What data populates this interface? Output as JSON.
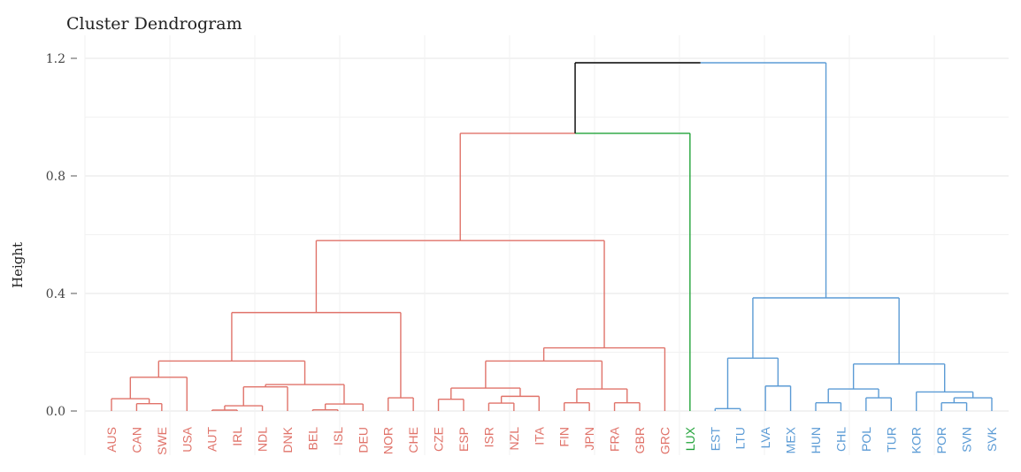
{
  "chart_data": {
    "type": "dendrogram",
    "title": "Cluster Dendrogram",
    "ylabel": "Height",
    "xlabel": "",
    "ylim": [
      0,
      1.2
    ],
    "yticks": [
      "0.0",
      "0.4",
      "0.8",
      "1.2"
    ],
    "ytick_values": [
      0,
      0.4,
      0.8,
      1.2
    ],
    "grid": true,
    "colors": {
      "cluster1": "#e0736a",
      "cluster2": "#22a33a",
      "cluster3": "#5b9bd5",
      "root": "#000000"
    },
    "leaves": [
      {
        "label": "AUS",
        "cluster": "cluster1"
      },
      {
        "label": "CAN",
        "cluster": "cluster1"
      },
      {
        "label": "SWE",
        "cluster": "cluster1"
      },
      {
        "label": "USA",
        "cluster": "cluster1"
      },
      {
        "label": "AUT",
        "cluster": "cluster1"
      },
      {
        "label": "IRL",
        "cluster": "cluster1"
      },
      {
        "label": "NDL",
        "cluster": "cluster1"
      },
      {
        "label": "DNK",
        "cluster": "cluster1"
      },
      {
        "label": "BEL",
        "cluster": "cluster1"
      },
      {
        "label": "ISL",
        "cluster": "cluster1"
      },
      {
        "label": "DEU",
        "cluster": "cluster1"
      },
      {
        "label": "NOR",
        "cluster": "cluster1"
      },
      {
        "label": "CHE",
        "cluster": "cluster1"
      },
      {
        "label": "CZE",
        "cluster": "cluster1"
      },
      {
        "label": "ESP",
        "cluster": "cluster1"
      },
      {
        "label": "ISR",
        "cluster": "cluster1"
      },
      {
        "label": "NZL",
        "cluster": "cluster1"
      },
      {
        "label": "ITA",
        "cluster": "cluster1"
      },
      {
        "label": "FIN",
        "cluster": "cluster1"
      },
      {
        "label": "JPN",
        "cluster": "cluster1"
      },
      {
        "label": "FRA",
        "cluster": "cluster1"
      },
      {
        "label": "GBR",
        "cluster": "cluster1"
      },
      {
        "label": "GRC",
        "cluster": "cluster1"
      },
      {
        "label": "LUX",
        "cluster": "cluster2"
      },
      {
        "label": "EST",
        "cluster": "cluster3"
      },
      {
        "label": "LTU",
        "cluster": "cluster3"
      },
      {
        "label": "LVA",
        "cluster": "cluster3"
      },
      {
        "label": "MEX",
        "cluster": "cluster3"
      },
      {
        "label": "HUN",
        "cluster": "cluster3"
      },
      {
        "label": "CHL",
        "cluster": "cluster3"
      },
      {
        "label": "POL",
        "cluster": "cluster3"
      },
      {
        "label": "TUR",
        "cluster": "cluster3"
      },
      {
        "label": "KOR",
        "cluster": "cluster3"
      },
      {
        "label": "POR",
        "cluster": "cluster3"
      },
      {
        "label": "SVN",
        "cluster": "cluster3"
      },
      {
        "label": "SVK",
        "cluster": "cluster3"
      }
    ],
    "merges": [
      {
        "a": [
          4
        ],
        "b": [
          5
        ],
        "height": 0.003,
        "color": "cluster1"
      },
      {
        "a": [
          8
        ],
        "b": [
          9
        ],
        "height": 0.004,
        "color": "cluster1"
      },
      {
        "a": [
          24
        ],
        "b": [
          25
        ],
        "height": 0.008,
        "color": "cluster3"
      },
      {
        "a": [
          4,
          5
        ],
        "b": [
          6
        ],
        "height": 0.018,
        "color": "cluster1"
      },
      {
        "a": [
          8,
          9
        ],
        "b": [
          10
        ],
        "height": 0.024,
        "color": "cluster1"
      },
      {
        "a": [
          1
        ],
        "b": [
          2
        ],
        "height": 0.025,
        "color": "cluster1"
      },
      {
        "a": [
          15
        ],
        "b": [
          16
        ],
        "height": 0.027,
        "color": "cluster1"
      },
      {
        "a": [
          18
        ],
        "b": [
          19
        ],
        "height": 0.028,
        "color": "cluster1"
      },
      {
        "a": [
          20
        ],
        "b": [
          21
        ],
        "height": 0.028,
        "color": "cluster1"
      },
      {
        "a": [
          28
        ],
        "b": [
          29
        ],
        "height": 0.028,
        "color": "cluster3"
      },
      {
        "a": [
          33
        ],
        "b": [
          34
        ],
        "height": 0.028,
        "color": "cluster3"
      },
      {
        "a": [
          13
        ],
        "b": [
          14
        ],
        "height": 0.04,
        "color": "cluster1"
      },
      {
        "a": [
          0
        ],
        "b": [
          1,
          2
        ],
        "height": 0.042,
        "color": "cluster1"
      },
      {
        "a": [
          11
        ],
        "b": [
          12
        ],
        "height": 0.045,
        "color": "cluster1"
      },
      {
        "a": [
          30
        ],
        "b": [
          31
        ],
        "height": 0.045,
        "color": "cluster3"
      },
      {
        "a": [
          33,
          34
        ],
        "b": [
          35
        ],
        "height": 0.045,
        "color": "cluster3"
      },
      {
        "a": [
          15,
          16
        ],
        "b": [
          17
        ],
        "height": 0.05,
        "color": "cluster1"
      },
      {
        "a": [
          32
        ],
        "b": [
          33,
          34,
          35
        ],
        "height": 0.065,
        "color": "cluster3"
      },
      {
        "a": [
          28,
          29
        ],
        "b": [
          30,
          31
        ],
        "height": 0.075,
        "color": "cluster3"
      },
      {
        "a": [
          18,
          19
        ],
        "b": [
          20,
          21
        ],
        "height": 0.075,
        "color": "cluster1"
      },
      {
        "a": [
          13,
          14
        ],
        "b": [
          15,
          16,
          17
        ],
        "height": 0.078,
        "color": "cluster1"
      },
      {
        "a": [
          4,
          5,
          6
        ],
        "b": [
          7
        ],
        "height": 0.082,
        "color": "cluster1"
      },
      {
        "a": [
          26
        ],
        "b": [
          27
        ],
        "height": 0.085,
        "color": "cluster3"
      },
      {
        "a": [
          4,
          5,
          6,
          7
        ],
        "b": [
          8,
          9,
          10
        ],
        "height": 0.09,
        "color": "cluster1"
      },
      {
        "a": [
          0,
          1,
          2
        ],
        "b": [
          3
        ],
        "height": 0.115,
        "color": "cluster1"
      },
      {
        "a": [
          28,
          29,
          30,
          31
        ],
        "b": [
          32,
          33,
          34,
          35
        ],
        "height": 0.16,
        "color": "cluster3"
      },
      {
        "a": [
          13,
          14,
          15,
          16,
          17
        ],
        "b": [
          18,
          19,
          20,
          21
        ],
        "height": 0.17,
        "color": "cluster1"
      },
      {
        "a": [
          0,
          1,
          2,
          3
        ],
        "b": [
          4,
          5,
          6,
          7,
          8,
          9,
          10
        ],
        "height": 0.17,
        "color": "cluster1"
      },
      {
        "a": [
          24,
          25
        ],
        "b": [
          26,
          27
        ],
        "height": 0.18,
        "color": "cluster3"
      },
      {
        "a": [
          13,
          14,
          15,
          16,
          17,
          18,
          19,
          20,
          21
        ],
        "b": [
          22
        ],
        "height": 0.215,
        "color": "cluster1"
      },
      {
        "a": [
          0,
          1,
          2,
          3,
          4,
          5,
          6,
          7,
          8,
          9,
          10
        ],
        "b": [
          11,
          12
        ],
        "height": 0.335,
        "color": "cluster1"
      },
      {
        "a": [
          24,
          25,
          26,
          27
        ],
        "b": [
          28,
          29,
          30,
          31,
          32,
          33,
          34,
          35
        ],
        "height": 0.385,
        "color": "cluster3"
      },
      {
        "a": [
          0,
          1,
          2,
          3,
          4,
          5,
          6,
          7,
          8,
          9,
          10,
          11,
          12
        ],
        "b": [
          13,
          14,
          15,
          16,
          17,
          18,
          19,
          20,
          21,
          22
        ],
        "height": 0.58,
        "color": "cluster1"
      },
      {
        "a": [
          0,
          1,
          2,
          3,
          4,
          5,
          6,
          7,
          8,
          9,
          10,
          11,
          12,
          13,
          14,
          15,
          16,
          17,
          18,
          19,
          20,
          21,
          22
        ],
        "b": [
          23
        ],
        "height": 0.945,
        "color": "split"
      },
      {
        "a": [
          0,
          1,
          2,
          3,
          4,
          5,
          6,
          7,
          8,
          9,
          10,
          11,
          12,
          13,
          14,
          15,
          16,
          17,
          18,
          19,
          20,
          21,
          22,
          23
        ],
        "b": [
          24,
          25,
          26,
          27,
          28,
          29,
          30,
          31,
          32,
          33,
          34,
          35
        ],
        "height": 1.185,
        "color": "root"
      }
    ]
  }
}
